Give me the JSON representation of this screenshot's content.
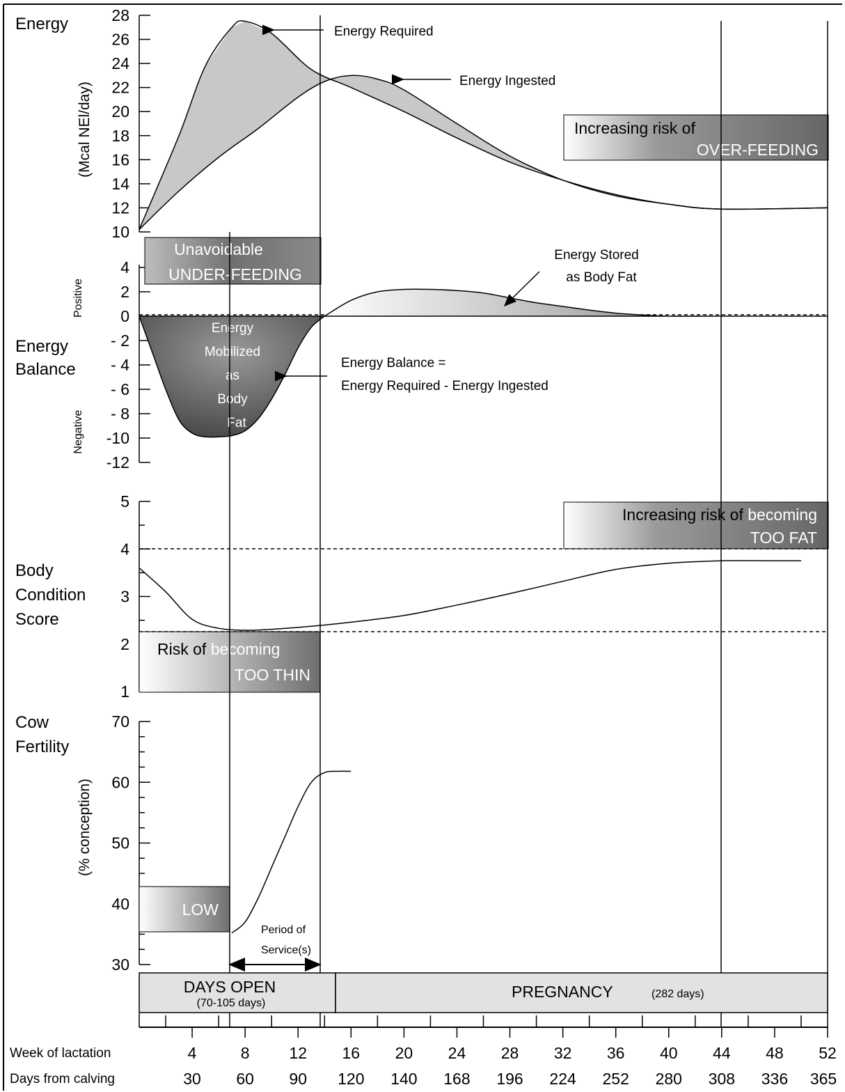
{
  "chart_data": [
    {
      "panel": "energy",
      "type": "line",
      "title": "Energy",
      "ylabel": "(Mcal NEl/day)",
      "ylim": [
        10,
        28
      ],
      "yticks": [
        "10",
        "12",
        "14",
        "16",
        "18",
        "20",
        "22",
        "24",
        "26",
        "28"
      ],
      "series": [
        {
          "name": "Energy Required",
          "x": [
            0,
            3,
            5,
            7,
            8,
            10,
            13,
            16,
            20,
            24,
            28,
            32,
            36,
            40,
            44,
            52
          ],
          "y": [
            10.2,
            18,
            23.8,
            27,
            27.5,
            26.5,
            23.5,
            22,
            20,
            17.8,
            15.8,
            14.3,
            13.1,
            12.3,
            11.9,
            12
          ]
        },
        {
          "name": "Energy Ingested",
          "x": [
            0,
            3,
            6,
            9,
            12,
            14,
            16,
            18,
            20,
            24,
            28,
            32,
            36,
            40,
            44,
            52
          ],
          "y": [
            10.2,
            13.4,
            16.2,
            18.6,
            21.2,
            22.5,
            23,
            22.7,
            21.8,
            19,
            16.3,
            14.3,
            13,
            12.3,
            11.9,
            12
          ]
        }
      ],
      "annotations": {
        "required": "Energy Required",
        "ingested": "Energy Ingested",
        "overfeed_1": "Increasing risk of",
        "overfeed_2": "OVER-FEEDING"
      }
    },
    {
      "panel": "energy_balance",
      "type": "area",
      "title_1": "Energy",
      "title_2": "Balance",
      "pos_label": "Positive",
      "neg_label": "Negative",
      "ylim": [
        -12,
        4
      ],
      "yticks": [
        "4",
        "2",
        "0",
        "- 2",
        "- 4",
        "- 6",
        "- 8",
        "-10",
        "-12"
      ],
      "x": [
        0,
        1,
        2,
        3,
        4,
        5,
        6,
        7,
        8,
        9,
        10,
        11,
        12,
        13,
        14,
        16,
        18,
        20,
        22,
        24,
        26,
        28,
        30,
        32,
        34,
        36,
        38,
        40,
        44,
        52
      ],
      "y": [
        0,
        -3,
        -6,
        -8.5,
        -9.6,
        -9.9,
        -9.9,
        -9.8,
        -9.4,
        -8.4,
        -6.8,
        -4.8,
        -2.6,
        -0.9,
        0,
        1.3,
        2,
        2.2,
        2.2,
        2.1,
        1.9,
        1.5,
        1.1,
        0.8,
        0.5,
        0.25,
        0.1,
        0,
        0,
        0
      ],
      "annotations": {
        "underfeed_1": "Unavoidable",
        "underfeed_2": "UNDER-FEEDING",
        "stored_1": "Energy Stored",
        "stored_2": "as Body Fat",
        "mobilized": [
          "Energy",
          "Mobilized",
          "as",
          "Body",
          "Fat"
        ],
        "formula_1": "Energy Balance =",
        "formula_2": "Energy Required - Energy Ingested"
      }
    },
    {
      "panel": "body_condition",
      "type": "line",
      "title_1": "Body",
      "title_2": "Condition",
      "title_3": "Score",
      "ylim": [
        1,
        5
      ],
      "yticks": [
        "1",
        "2",
        "3",
        "4",
        "5"
      ],
      "series": [
        {
          "name": "",
          "x": [
            0,
            2,
            4,
            6,
            8,
            10,
            12,
            14,
            16,
            20,
            24,
            28,
            32,
            36,
            40,
            44,
            48,
            50
          ],
          "y": [
            3.6,
            3.1,
            2.52,
            2.33,
            2.29,
            2.31,
            2.35,
            2.4,
            2.46,
            2.6,
            2.82,
            3.06,
            3.32,
            3.57,
            3.7,
            3.75,
            3.75,
            3.75
          ]
        }
      ],
      "reference_lines": [
        4,
        2.25
      ],
      "annotations": {
        "fat_1": "Increasing risk of",
        "fat_1b": "becoming",
        "fat_2": "TOO FAT",
        "thin_1": "Risk of",
        "thin_1b": "becoming",
        "thin_2": "TOO THIN"
      }
    },
    {
      "panel": "fertility",
      "type": "line",
      "title_1": "Cow",
      "title_2": "Fertility",
      "ylabel": "(% conception)",
      "ylim": [
        30,
        70
      ],
      "yticks": [
        "30",
        "40",
        "50",
        "60",
        "70"
      ],
      "series": [
        {
          "name": "",
          "x": [
            7,
            8,
            9,
            10,
            11,
            12,
            13,
            14,
            15,
            16
          ],
          "y": [
            35.2,
            37,
            41,
            46,
            51,
            56,
            60,
            61.6,
            61.8,
            61.8
          ]
        }
      ],
      "annotations": {
        "low": "LOW",
        "service_1": "Period of",
        "service_2": "Service(s)"
      }
    }
  ],
  "phases": {
    "days_open": "DAYS OPEN",
    "days_open_range": "(70-105 days)",
    "pregnancy": "PREGNANCY",
    "pregnancy_days": "(282 days)"
  },
  "x_axis": {
    "week_label": "Week of lactation",
    "days_label": "Days from calving",
    "weeks": [
      "4",
      "8",
      "12",
      "16",
      "20",
      "24",
      "28",
      "32",
      "36",
      "40",
      "44",
      "48",
      "52"
    ],
    "days": [
      "30",
      "60",
      "90",
      "120",
      "140",
      "168",
      "196",
      "224",
      "252",
      "280",
      "308",
      "336",
      "365"
    ]
  }
}
